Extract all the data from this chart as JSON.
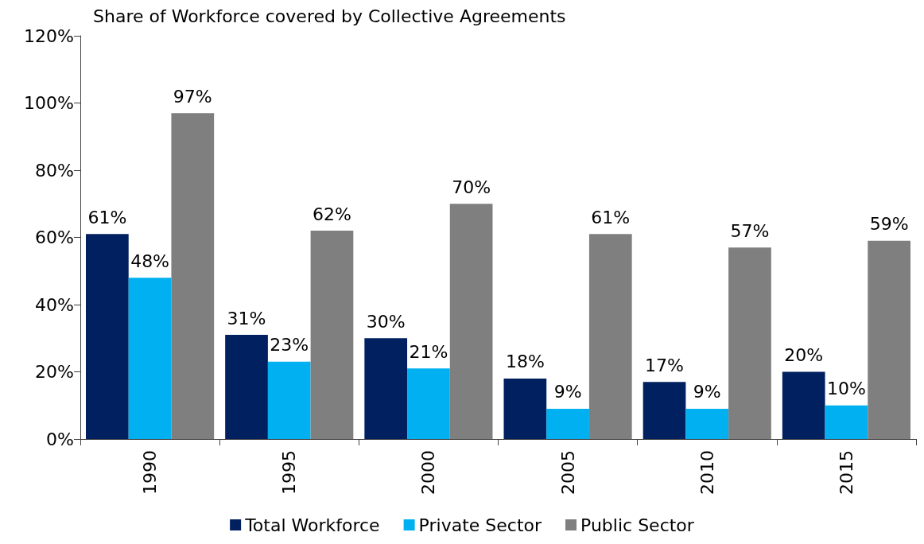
{
  "chart_data": {
    "type": "bar",
    "title": "Share of Workforce covered by Collective Agreements",
    "categories": [
      "1990",
      "1995",
      "2000",
      "2005",
      "2010",
      "2015"
    ],
    "series": [
      {
        "name": "Total Workforce",
        "color": "#002060",
        "values": [
          61,
          31,
          30,
          18,
          17,
          20
        ],
        "value_labels": [
          "61%",
          "31%",
          "30%",
          "18%",
          "17%",
          "20%"
        ]
      },
      {
        "name": "Private Sector",
        "color": "#00b0f0",
        "values": [
          48,
          23,
          21,
          9,
          9,
          10
        ],
        "value_labels": [
          "48%",
          "23%",
          "21%",
          "9%",
          "9%",
          "10%"
        ]
      },
      {
        "name": "Public Sector",
        "color": "#7f7f7f",
        "values": [
          97,
          62,
          70,
          61,
          57,
          59
        ],
        "value_labels": [
          "97%",
          "62%",
          "70%",
          "61%",
          "57%",
          "59%"
        ]
      }
    ],
    "ylim": [
      0,
      120
    ],
    "yticks": [
      {
        "value": 0,
        "label": "0%"
      },
      {
        "value": 20,
        "label": "20%"
      },
      {
        "value": 40,
        "label": "40%"
      },
      {
        "value": 60,
        "label": "60%"
      },
      {
        "value": 80,
        "label": "80%"
      },
      {
        "value": 100,
        "label": "100%"
      },
      {
        "value": 120,
        "label": "120%"
      }
    ],
    "grid": false,
    "legend": "bottom"
  }
}
